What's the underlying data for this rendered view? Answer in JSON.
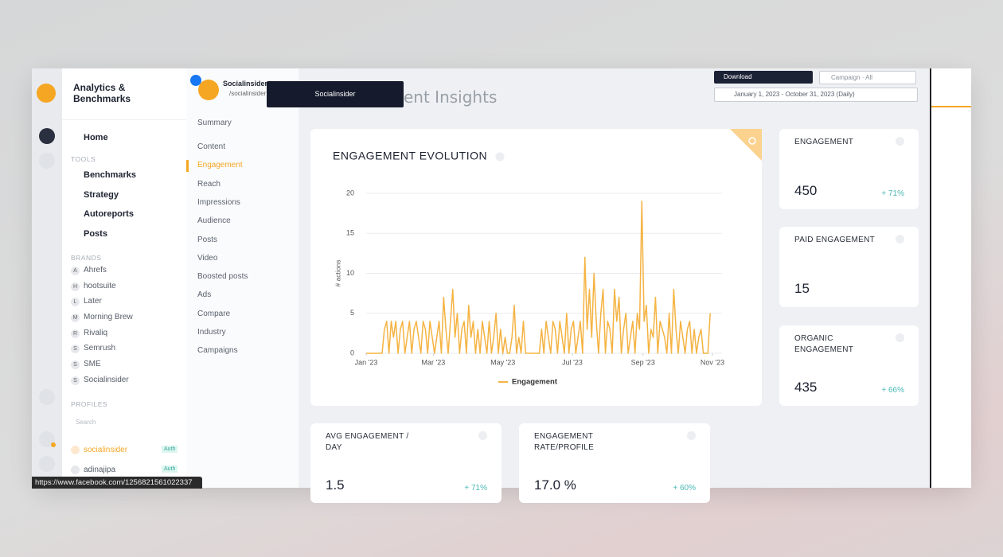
{
  "sidebar": {
    "brand": "Analytics & Benchmarks",
    "home": "Home",
    "tools_heading": "TOOLS",
    "tools": [
      "Benchmarks",
      "Strategy",
      "Autoreports",
      "Posts"
    ],
    "brands_heading": "BRANDS",
    "brands": [
      {
        "initial": "A",
        "name": "Ahrefs"
      },
      {
        "initial": "H",
        "name": "hootsuite"
      },
      {
        "initial": "L",
        "name": "Later"
      },
      {
        "initial": "M",
        "name": "Morning Brew"
      },
      {
        "initial": "R",
        "name": "Rivaliq"
      },
      {
        "initial": "S",
        "name": "Semrush"
      },
      {
        "initial": "S",
        "name": "SME"
      },
      {
        "initial": "S",
        "name": "Socialinsider"
      }
    ],
    "profiles_heading": "PROFILES",
    "search": "Search",
    "profiles": [
      {
        "name": "socialinsider",
        "badge": "Auth"
      },
      {
        "name": "adinajipa",
        "badge": "Auth"
      }
    ]
  },
  "profile": {
    "name": "Socialinsider",
    "handle": "/socialinsider",
    "tooltip": "Socialinsider"
  },
  "subnav": {
    "items": [
      "Summary",
      "Content",
      "Engagement",
      "Reach",
      "Impressions",
      "Audience",
      "Posts",
      "Video",
      "Boosted posts",
      "Ads",
      "Compare",
      "Industry",
      "Campaigns"
    ]
  },
  "header": {
    "title": "ent Insights",
    "download": "Download",
    "campaign": "Campaign · All",
    "date_range": "January 1, 2023 - October 31, 2023 (Daily)"
  },
  "cards": [
    {
      "label": "ENGAGEMENT",
      "value": "450",
      "change": "+ 71%"
    },
    {
      "label": "PAID ENGAGEMENT",
      "value": "15"
    },
    {
      "label": "ORGANIC ENGAGEMENT",
      "value": "435",
      "change": "+ 66%"
    },
    {
      "label": "AVG ENGAGEMENT / DAY",
      "value": "1.5",
      "change": "+ 71%"
    },
    {
      "label": "ENGAGEMENT RATE/PROFILE",
      "value": "17.0 %",
      "change": "+ 60%"
    }
  ],
  "status_url": "https://www.facebook.com/1256821561022337",
  "chart_data": {
    "type": "line",
    "title": "ENGAGEMENT EVOLUTION",
    "y_label": "# actions",
    "x": [
      0,
      2,
      4,
      6,
      8,
      10,
      12,
      14,
      16,
      18,
      20,
      22,
      24,
      26,
      28,
      30,
      32,
      34,
      36,
      38,
      40,
      42,
      44,
      46,
      48,
      50,
      52,
      54,
      56,
      58,
      60,
      62,
      64,
      66,
      68,
      70,
      72,
      74,
      76,
      78,
      80,
      82,
      84,
      86,
      88,
      90,
      92,
      94,
      96,
      98,
      100,
      102,
      104,
      106,
      108,
      110,
      112,
      114,
      116,
      118,
      120,
      122,
      124,
      126,
      128,
      130,
      132,
      134,
      136,
      138,
      140,
      142,
      144,
      146,
      148,
      150,
      152,
      154,
      156,
      158,
      160,
      162,
      164,
      166,
      168,
      170,
      172,
      174,
      176,
      178,
      180,
      182,
      184,
      186,
      188,
      190,
      192,
      194,
      196,
      198,
      200,
      202,
      204,
      206,
      208,
      210,
      212,
      214,
      216,
      218,
      220,
      222,
      224,
      226,
      228,
      230,
      232,
      234,
      236,
      238,
      240,
      242,
      244,
      246,
      248,
      250,
      252,
      254,
      256,
      258,
      260,
      262,
      264,
      266,
      268,
      270,
      272,
      274,
      276,
      278,
      280,
      282,
      284,
      286,
      288,
      290,
      292,
      294,
      296,
      298,
      300,
      302
    ],
    "xlim": [
      0,
      304
    ],
    "xticks": [
      {
        "value": 0,
        "label": "Jan '23"
      },
      {
        "value": 59,
        "label": "Mar '23"
      },
      {
        "value": 120,
        "label": "May '23"
      },
      {
        "value": 181,
        "label": "Jul '23"
      },
      {
        "value": 243,
        "label": "Sep '23"
      },
      {
        "value": 304,
        "label": "Nov '23"
      }
    ],
    "ylim": [
      0,
      20
    ],
    "yticks": [
      0,
      5,
      10,
      15,
      20
    ],
    "grid": true,
    "series": [
      {
        "name": "Engagement",
        "color": "#f5b342",
        "values": [
          0,
          0,
          0,
          0,
          0,
          0,
          0,
          0,
          3,
          4,
          0,
          4,
          2,
          4,
          0,
          3,
          4,
          0,
          2,
          4,
          0,
          3,
          4,
          2,
          0,
          4,
          3,
          0,
          4,
          2,
          0,
          2,
          4,
          0,
          7,
          3,
          0,
          4,
          8,
          2,
          5,
          0,
          3,
          4,
          0,
          6,
          2,
          4,
          0,
          3,
          0,
          4,
          2,
          0,
          4,
          0,
          2,
          5,
          0,
          3,
          0,
          2,
          0,
          0,
          2,
          6,
          0,
          2,
          0,
          4,
          0,
          0,
          0,
          0,
          0,
          0,
          0,
          3,
          0,
          4,
          2,
          0,
          4,
          3,
          0,
          4,
          2,
          0,
          5,
          0,
          3,
          4,
          0,
          2,
          4,
          0,
          12,
          3,
          8,
          2,
          10,
          4,
          0,
          5,
          8,
          0,
          4,
          3,
          0,
          8,
          4,
          7,
          0,
          3,
          5,
          0,
          2,
          4,
          0,
          5,
          3,
          19,
          4,
          6,
          0,
          3,
          2,
          7,
          0,
          4,
          3,
          2,
          0,
          5,
          0,
          8,
          3,
          0,
          4,
          2,
          0,
          3,
          4,
          0,
          3,
          0,
          2,
          3,
          0,
          0,
          0,
          5
        ]
      }
    ]
  }
}
